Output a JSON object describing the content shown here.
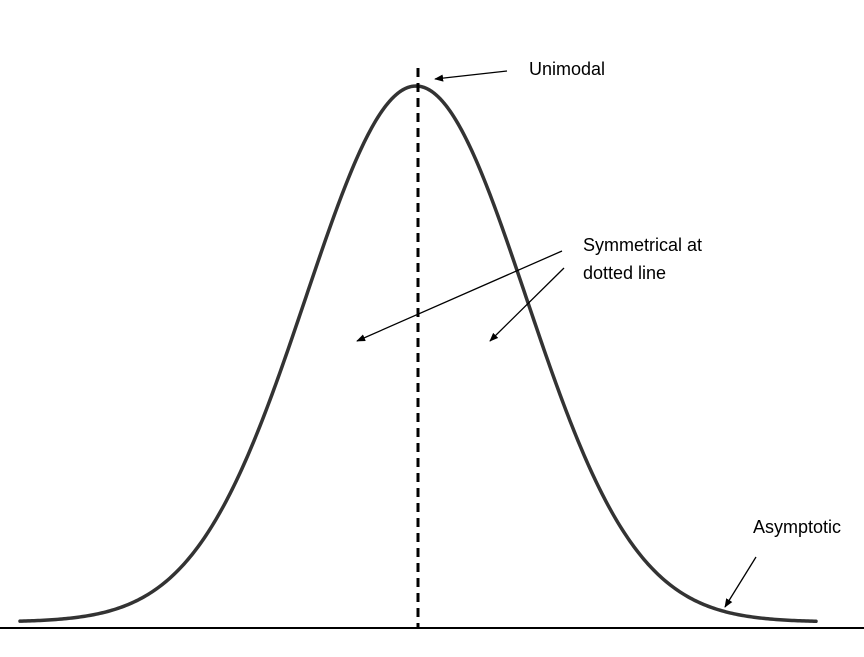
{
  "labels": {
    "unimodal": "Unimodal",
    "symmetrical_line1": "Symmetrical at",
    "symmetrical_line2": "dotted line",
    "asymptotic": "Asymptotic"
  },
  "colors": {
    "curve": "#333333",
    "axis": "#000000",
    "dashed_line": "#000000",
    "arrows": "#000000"
  }
}
